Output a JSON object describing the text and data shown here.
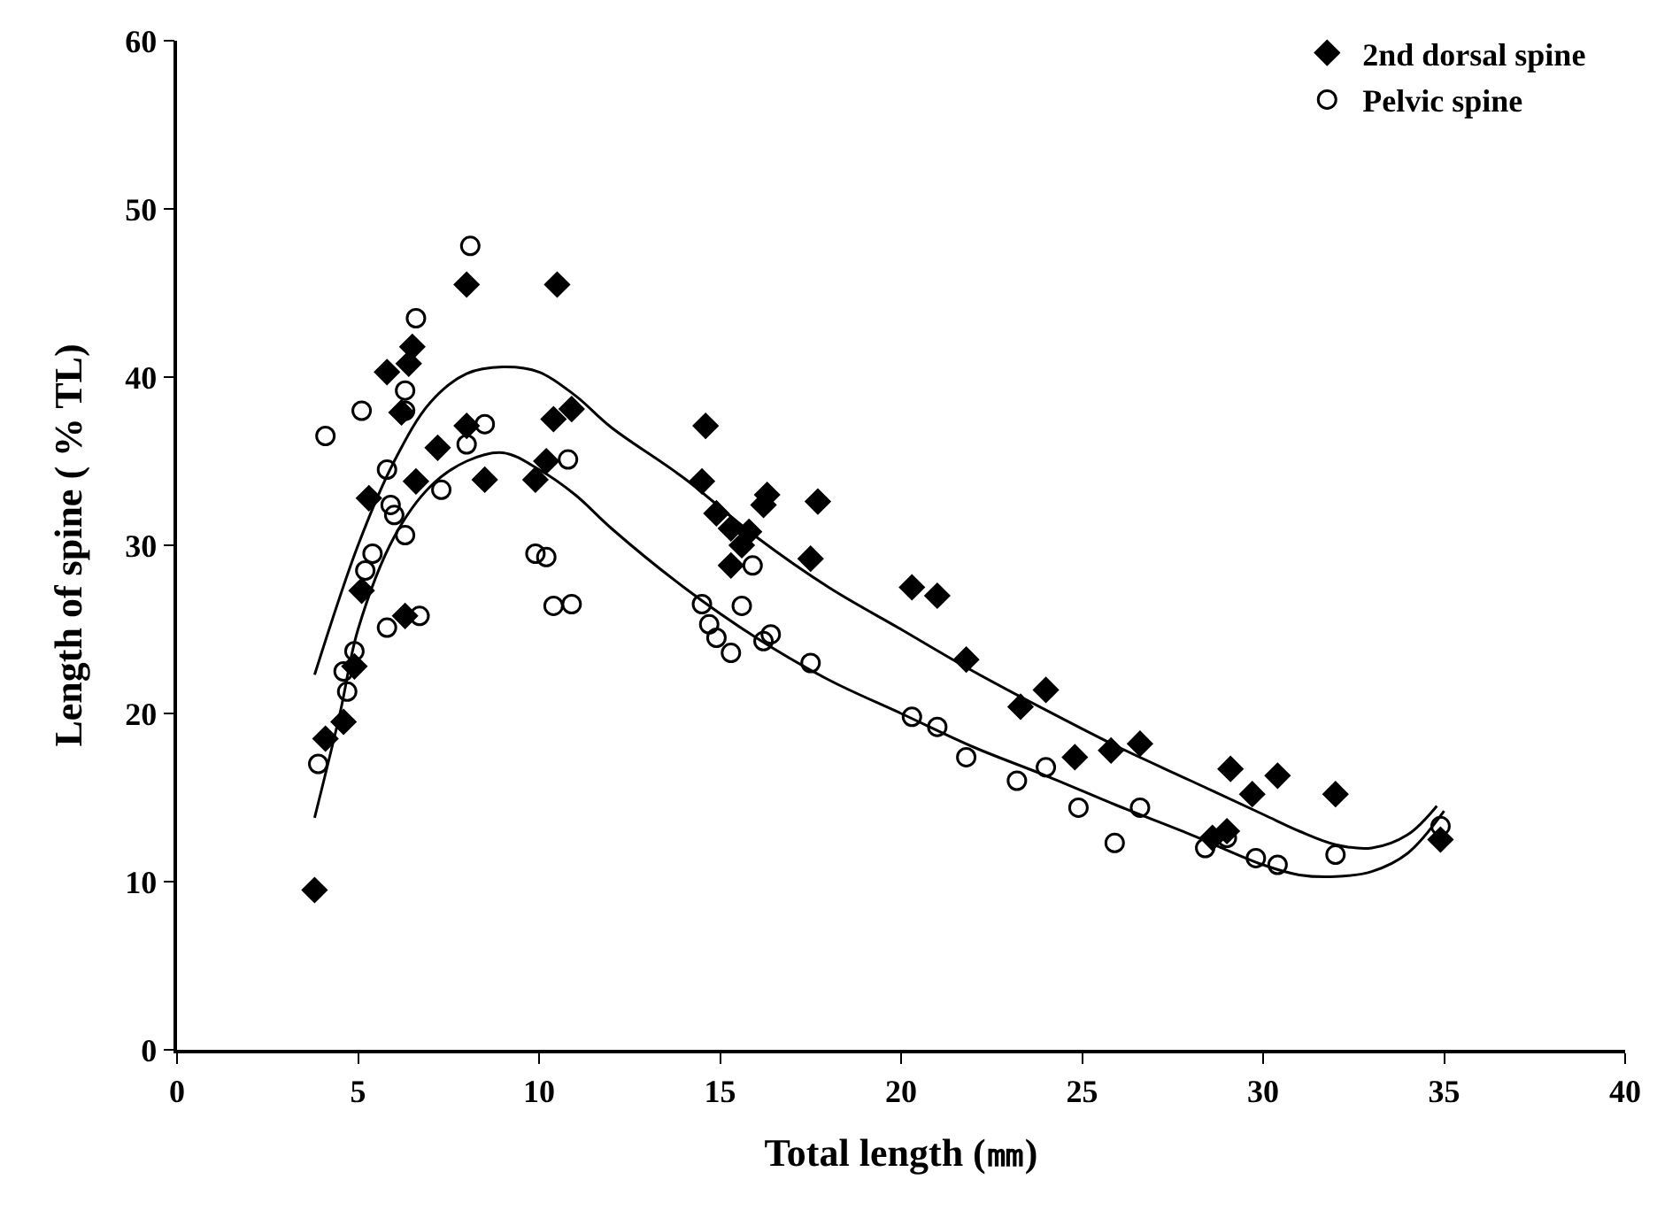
{
  "chart_data": {
    "type": "scatter",
    "xlabel": "Total length (㎜)",
    "ylabel": "Length of spine ( % TL)",
    "xlim": [
      0,
      40
    ],
    "xticks": [
      0,
      5,
      10,
      15,
      20,
      25,
      30,
      35,
      40
    ],
    "ylim": [
      0,
      60
    ],
    "yticks": [
      0,
      10,
      20,
      30,
      40,
      50,
      60
    ],
    "grid": false,
    "legend": "top right",
    "series": [
      {
        "name": "2nd dorsal spine",
        "color": "#000000",
        "marker": "diamond",
        "x": [
          3.8,
          4.1,
          4.6,
          4.9,
          5.1,
          5.3,
          5.8,
          6.2,
          6.3,
          6.4,
          6.5,
          6.6,
          7.2,
          8.0,
          8.0,
          8.5,
          9.9,
          10.2,
          10.4,
          10.5,
          10.9,
          14.5,
          14.6,
          14.9,
          15.3,
          15.6,
          15.3,
          15.8,
          16.2,
          16.3,
          17.5,
          17.7,
          20.3,
          21.0,
          21.8,
          23.3,
          24.0,
          24.8,
          25.8,
          26.6,
          28.6,
          29.0,
          29.1,
          29.7,
          30.4,
          32.0,
          34.9
        ],
        "values": [
          9.5,
          18.5,
          19.5,
          22.8,
          27.3,
          32.8,
          40.3,
          37.9,
          25.8,
          40.8,
          41.8,
          33.8,
          35.8,
          37.1,
          45.5,
          33.9,
          33.9,
          35.0,
          37.5,
          45.5,
          38.1,
          33.8,
          37.1,
          31.9,
          28.8,
          30.0,
          31.0,
          30.8,
          32.4,
          33.0,
          29.2,
          32.6,
          27.5,
          27.0,
          23.2,
          20.4,
          21.4,
          17.4,
          17.8,
          18.2,
          12.6,
          13.0,
          16.7,
          15.2,
          16.3,
          15.2,
          12.5
        ]
      },
      {
        "name": "Pelvic spine",
        "color": "#000000",
        "marker": "circle",
        "x": [
          3.9,
          4.1,
          4.6,
          4.7,
          4.9,
          5.1,
          5.2,
          5.4,
          5.8,
          5.8,
          5.9,
          6.0,
          6.3,
          6.3,
          6.3,
          6.6,
          6.7,
          7.3,
          8.0,
          8.1,
          8.5,
          9.9,
          10.2,
          10.4,
          10.8,
          10.9,
          14.5,
          14.7,
          14.9,
          15.3,
          15.6,
          15.9,
          16.2,
          16.4,
          17.5,
          20.3,
          21.0,
          21.8,
          23.2,
          24.0,
          24.9,
          25.9,
          26.6,
          28.4,
          29.0,
          29.8,
          30.4,
          32.0,
          34.9
        ],
        "values": [
          17.0,
          36.5,
          22.5,
          21.3,
          23.7,
          38.0,
          28.5,
          29.5,
          34.5,
          25.1,
          32.4,
          31.8,
          30.6,
          38.0,
          39.2,
          43.5,
          25.8,
          33.3,
          36.0,
          47.8,
          37.2,
          29.5,
          29.3,
          26.4,
          35.1,
          26.5,
          26.5,
          25.3,
          24.5,
          23.6,
          26.4,
          28.8,
          24.3,
          24.7,
          23.0,
          19.8,
          19.2,
          17.4,
          16.0,
          16.8,
          14.4,
          12.3,
          14.4,
          12.0,
          12.6,
          11.4,
          11.0,
          11.6,
          13.3
        ]
      },
      {
        "type": "line",
        "color": "#000000",
        "marker": "none",
        "line_style": "solid",
        "x": [
          3.8,
          5,
          6,
          7,
          8,
          9,
          10,
          11,
          12,
          14,
          16,
          18,
          20,
          22,
          24,
          26,
          28,
          30,
          31,
          32,
          33,
          34,
          34.8
        ],
        "values": [
          22.3,
          30,
          35,
          38.5,
          40.2,
          40.6,
          40.3,
          38.9,
          37,
          34,
          30.5,
          27.5,
          25,
          22.5,
          20.2,
          18,
          16,
          14,
          13,
          12.2,
          12,
          12.8,
          14.5
        ]
      },
      {
        "type": "line",
        "color": "#000000",
        "marker": "none",
        "line_style": "solid",
        "x": [
          3.8,
          4.5,
          5,
          6,
          7,
          8,
          9,
          10,
          11,
          12,
          14,
          16,
          18,
          20,
          22,
          24,
          26,
          28,
          30,
          31,
          32,
          33,
          34,
          35
        ],
        "values": [
          13.8,
          20,
          25,
          30.5,
          33.5,
          35,
          35.5,
          34.5,
          33,
          31,
          27.5,
          24.5,
          22,
          20,
          18,
          16.3,
          14.5,
          12.8,
          11,
          10.4,
          10.3,
          10.6,
          11.7,
          14.2
        ]
      }
    ]
  }
}
